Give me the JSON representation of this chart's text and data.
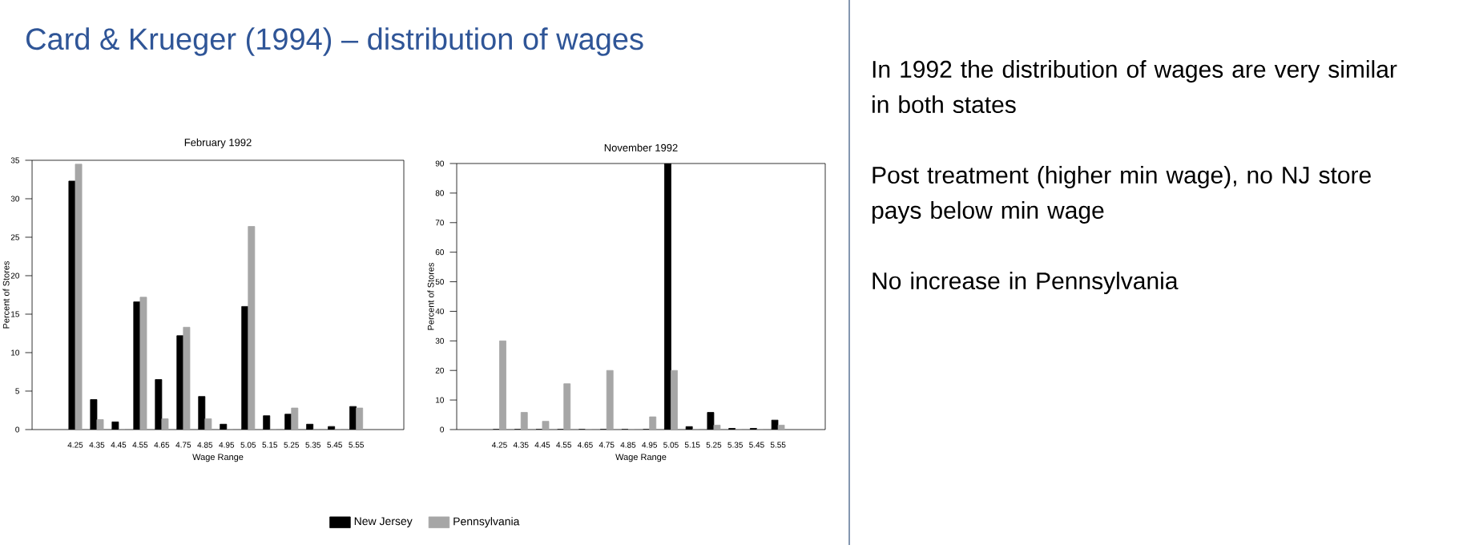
{
  "chart_data": [
    {
      "type": "bar",
      "title": "February 1992",
      "xlabel": "Wage Range",
      "ylabel": "Percent of Stores",
      "categories": [
        "4.25",
        "4.35",
        "4.45",
        "4.55",
        "4.65",
        "4.75",
        "4.85",
        "4.95",
        "5.05",
        "5.15",
        "5.25",
        "5.35",
        "5.45",
        "5.55"
      ],
      "series": [
        {
          "name": "New Jersey",
          "color": "#000000",
          "values": [
            32.3,
            3.9,
            1.0,
            16.6,
            6.5,
            12.2,
            4.3,
            0.7,
            16.0,
            1.8,
            2.0,
            0.7,
            0.4,
            3.0
          ]
        },
        {
          "name": "Pennsylvania",
          "color": "#a6a6a6",
          "values": [
            34.5,
            1.3,
            0,
            17.2,
            1.4,
            13.3,
            1.4,
            0,
            26.4,
            0,
            2.8,
            0,
            0,
            2.8
          ]
        }
      ],
      "ylim": [
        0,
        35
      ],
      "yticks": [
        0,
        5,
        10,
        15,
        20,
        25,
        30,
        35
      ],
      "legend": "bottom"
    },
    {
      "type": "bar",
      "title": "November 1992",
      "xlabel": "Wage Range",
      "ylabel": "Percent of Stores",
      "categories": [
        "4.25",
        "4.35",
        "4.45",
        "4.55",
        "4.65",
        "4.75",
        "4.85",
        "4.95",
        "5.05",
        "5.15",
        "5.25",
        "5.35",
        "5.45",
        "5.55"
      ],
      "series": [
        {
          "color": "#000000",
          "values": [
            0,
            0,
            0,
            0,
            0,
            0,
            0,
            0,
            90,
            1.0,
            5.8,
            0.4,
            0.4,
            3.2
          ]
        },
        {
          "color": "#a6a6a6",
          "values": [
            30,
            5.8,
            2.8,
            15.5,
            0,
            20,
            0,
            4.3,
            20,
            0,
            1.5,
            0,
            0,
            1.5
          ]
        }
      ],
      "ylim": [
        0,
        90
      ],
      "yticks": [
        0,
        10,
        20,
        30,
        40,
        50,
        60,
        70,
        80,
        90
      ]
    },
    {
      "type": "other",
      "title": "Card & Krueger (1994) – distribution of wages",
      "annotations": [
        "In 1992 the distribution of wages are very similar in both states",
        "Post treatment (higher min wage), no NJ store pays below min wage",
        "No increase in Pennsylvania"
      ]
    }
  ]
}
